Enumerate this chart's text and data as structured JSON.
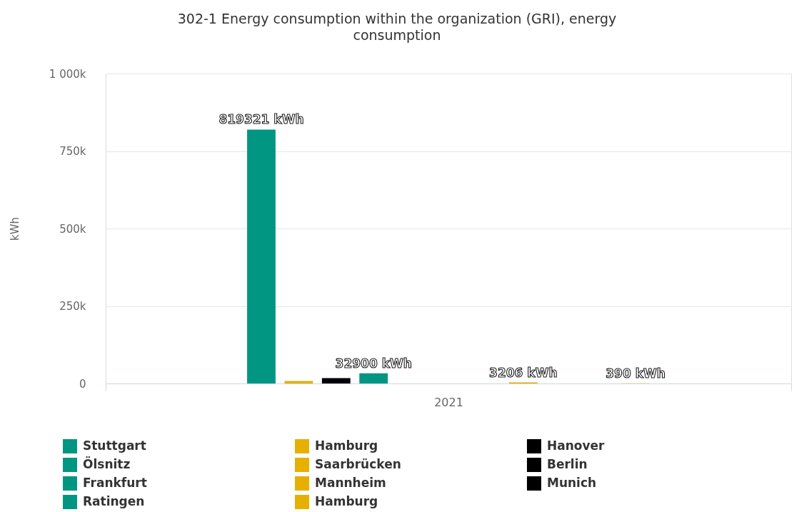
{
  "chart_data": {
    "type": "bar",
    "title": "302-1 Energy consumption within the organization (GRI), energy consumption",
    "ylabel": "kWh",
    "categories": [
      "2021"
    ],
    "series": [
      {
        "name": "Stuttgart",
        "color": "#009682",
        "values": [
          819321
        ],
        "value_labels": [
          "819321 kWh"
        ]
      },
      {
        "name": "Hamburg",
        "color": "#e6b000",
        "values": [
          8000
        ],
        "value_labels": [
          null
        ]
      },
      {
        "name": "Hanover",
        "color": "#000000",
        "values": [
          17000
        ],
        "value_labels": [
          null
        ]
      },
      {
        "name": "Ölsnitz",
        "color": "#009682",
        "values": [
          32900
        ],
        "value_labels": [
          "32900 kWh"
        ]
      },
      {
        "name": "Saarbrücken",
        "color": "#e6b000",
        "values": [
          null
        ]
      },
      {
        "name": "Berlin",
        "color": "#000000",
        "values": [
          null
        ]
      },
      {
        "name": "Frankfurt",
        "color": "#009682",
        "values": [
          null
        ]
      },
      {
        "name": "Mannheim",
        "color": "#e6b000",
        "values": [
          3206
        ],
        "value_labels": [
          "3206 kWh"
        ]
      },
      {
        "name": "Munich",
        "color": "#000000",
        "values": [
          null
        ]
      },
      {
        "name": "Ratingen",
        "color": "#009682",
        "values": [
          null
        ]
      },
      {
        "name": "Hamburg",
        "color": "#e6b000",
        "values": [
          390
        ],
        "value_labels": [
          "390 kWh"
        ]
      }
    ],
    "ylim": [
      0,
      1000000
    ],
    "yticks": [
      0,
      {
        "value": 250000,
        "label": "250k"
      },
      {
        "value": 500000,
        "label": "500k"
      },
      {
        "value": 750000,
        "label": "750k"
      },
      {
        "value": 1000000,
        "label": "1 000k"
      }
    ],
    "grid": "y",
    "legend": "bottom"
  }
}
